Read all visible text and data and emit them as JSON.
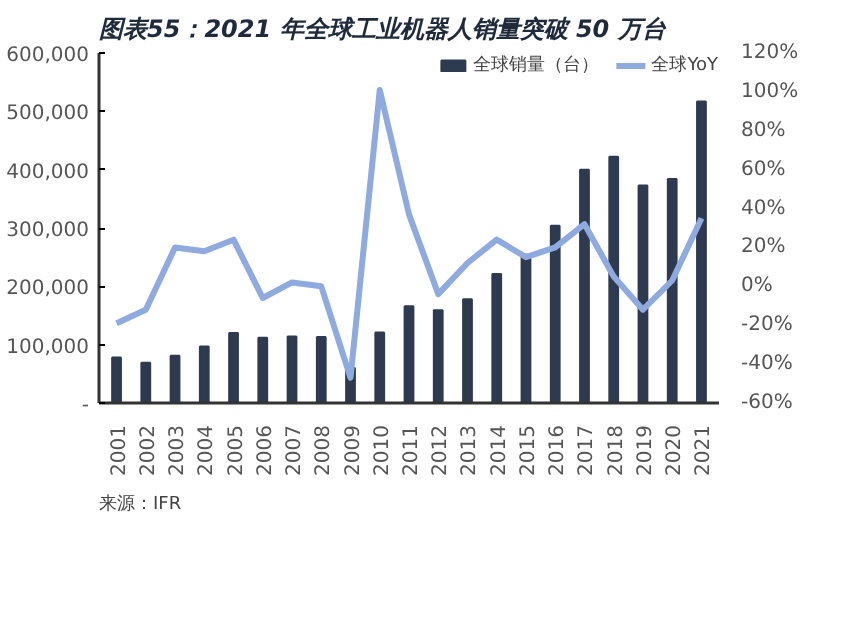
{
  "chart_data": {
    "type": "bar",
    "title": "图表55：2021 年全球工业机器人销量突破 50 万台",
    "categories": [
      "2001",
      "2002",
      "2003",
      "2004",
      "2005",
      "2006",
      "2007",
      "2008",
      "2009",
      "2010",
      "2011",
      "2012",
      "2013",
      "2014",
      "2015",
      "2016",
      "2017",
      "2018",
      "2019",
      "2020",
      "2021"
    ],
    "series": [
      {
        "name": "全球销量（台）",
        "color": "#2e3a4f",
        "values": [
          78000,
          69000,
          81000,
          97000,
          120000,
          112000,
          114000,
          113000,
          60000,
          121000,
          166000,
          159000,
          178000,
          221000,
          254000,
          304000,
          400000,
          422000,
          373000,
          384000,
          517000
        ]
      },
      {
        "name": "全球YoY",
        "type": "line",
        "axis": "y2",
        "color": "#8eaadf",
        "values": [
          -19,
          -12,
          20,
          18,
          24,
          -6,
          2,
          0,
          -47,
          101,
          37,
          -4,
          12,
          24,
          15,
          20,
          32,
          5,
          -12,
          3,
          35
        ]
      }
    ],
    "ylim": [
      0,
      600000
    ],
    "yticks": [
      {
        "value": 0,
        "label": "-"
      },
      {
        "value": 100000,
        "label": "100,000"
      },
      {
        "value": 200000,
        "label": "200,000"
      },
      {
        "value": 300000,
        "label": "300,000"
      },
      {
        "value": 400000,
        "label": "400,000"
      },
      {
        "value": 500000,
        "label": "500,000"
      },
      {
        "value": 600000,
        "label": "600,000"
      }
    ],
    "y2lim": [
      -60,
      120
    ],
    "y2ticks": [
      {
        "value": -60,
        "label": "-60%"
      },
      {
        "value": -40,
        "label": "-40%"
      },
      {
        "value": -20,
        "label": "-20%"
      },
      {
        "value": 0,
        "label": "0%"
      },
      {
        "value": 20,
        "label": "20%"
      },
      {
        "value": 40,
        "label": "40%"
      },
      {
        "value": 60,
        "label": "60%"
      },
      {
        "value": 80,
        "label": "80%"
      },
      {
        "value": 100,
        "label": "100%"
      },
      {
        "value": 120,
        "label": "120%"
      }
    ],
    "legend": "top",
    "grid": false,
    "annotations": [
      "来源：IFR"
    ]
  }
}
